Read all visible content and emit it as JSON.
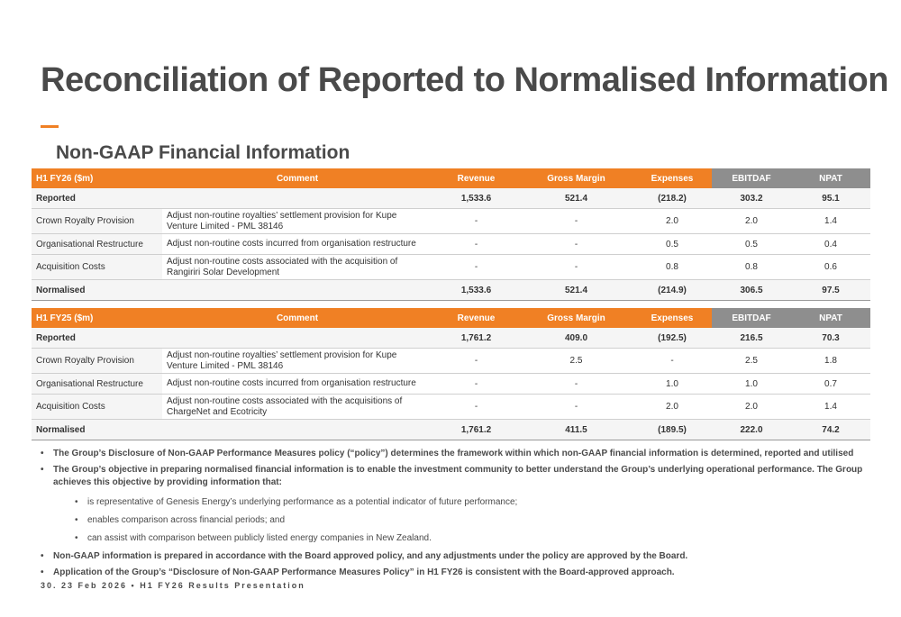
{
  "title": "Reconciliation of Reported to Normalised Information",
  "subtitle": "Non-GAAP Financial Information",
  "tables": [
    {
      "headers": [
        "H1 FY26 ($m)",
        "Comment",
        "Revenue",
        "Gross Margin",
        "Expenses",
        "EBITDAF",
        "NPAT"
      ],
      "rows": [
        {
          "label": "Reported",
          "comment": "",
          "revenue": "1,533.6",
          "gross_margin": "521.4",
          "expenses": "(218.2)",
          "ebitdaf": "303.2",
          "npat": "95.1"
        },
        {
          "label": "Crown Royalty Provision",
          "comment": "Adjust non-routine royalties’ settlement provision for Kupe Venture Limited - PML 38146",
          "revenue": "-",
          "gross_margin": "-",
          "expenses": "2.0",
          "ebitdaf": "2.0",
          "npat": "1.4"
        },
        {
          "label": "Organisational Restructure",
          "comment": "Adjust non-routine costs incurred from organisation restructure",
          "revenue": "-",
          "gross_margin": "-",
          "expenses": "0.5",
          "ebitdaf": "0.5",
          "npat": "0.4"
        },
        {
          "label": "Acquisition Costs",
          "comment": "Adjust non-routine costs associated with the acquisition of Rangiriri Solar Development",
          "revenue": "-",
          "gross_margin": "-",
          "expenses": "0.8",
          "ebitdaf": "0.8",
          "npat": "0.6"
        },
        {
          "label": "Normalised",
          "comment": "",
          "revenue": "1,533.6",
          "gross_margin": "521.4",
          "expenses": "(214.9)",
          "ebitdaf": "306.5",
          "npat": "97.5"
        }
      ]
    },
    {
      "headers": [
        "H1 FY25 ($m)",
        "Comment",
        "Revenue",
        "Gross Margin",
        "Expenses",
        "EBITDAF",
        "NPAT"
      ],
      "rows": [
        {
          "label": "Reported",
          "comment": "",
          "revenue": "1,761.2",
          "gross_margin": "409.0",
          "expenses": "(192.5)",
          "ebitdaf": "216.5",
          "npat": "70.3"
        },
        {
          "label": "Crown Royalty Provision",
          "comment": "Adjust non-routine royalties’ settlement provision for Kupe Venture Limited - PML 38146",
          "revenue": "-",
          "gross_margin": "2.5",
          "expenses": "-",
          "ebitdaf": "2.5",
          "npat": "1.8"
        },
        {
          "label": "Organisational Restructure",
          "comment": "Adjust non-routine costs incurred from organisation restructure",
          "revenue": "-",
          "gross_margin": "-",
          "expenses": "1.0",
          "ebitdaf": "1.0",
          "npat": "0.7"
        },
        {
          "label": "Acquisition Costs",
          "comment": "Adjust non-routine costs associated with the acquisitions of ChargeNet and Ecotricity",
          "revenue": "-",
          "gross_margin": "-",
          "expenses": "2.0",
          "ebitdaf": "2.0",
          "npat": "1.4"
        },
        {
          "label": "Normalised",
          "comment": "",
          "revenue": "1,761.2",
          "gross_margin": "411.5",
          "expenses": "(189.5)",
          "ebitdaf": "222.0",
          "npat": "74.2"
        }
      ]
    }
  ],
  "notes": {
    "n1": "The Group’s Disclosure of Non-GAAP Performance Measures policy (“policy”) determines the framework within which non-GAAP financial information is determined, reported and utilised",
    "n2": "The Group’s objective in preparing normalised financial information is to enable the investment community to better understand the Group’s underlying operational performance.  The Group achieves this objective by providing information that:",
    "s1": "is representative of Genesis Energy’s underlying performance as a potential indicator of future performance;",
    "s2": "enables comparison across financial periods; and",
    "s3": "can assist with comparison between publicly listed energy companies in New Zealand.",
    "n3": "Non-GAAP information is prepared in accordance with the Board approved policy, and any adjustments under the policy are approved by the Board.",
    "n4": "Application of the Group’s “Disclosure of Non-GAAP Performance Measures Policy” in H1 FY26 is consistent with the Board-approved approach."
  },
  "bullet_glyph": "•",
  "footer": "30.  23 Feb 2026 • H1 FY26 Results Presentation",
  "colors": {
    "accent": "#f08024",
    "header_grey": "#8e8e8e",
    "title": "#4a4a4a"
  }
}
